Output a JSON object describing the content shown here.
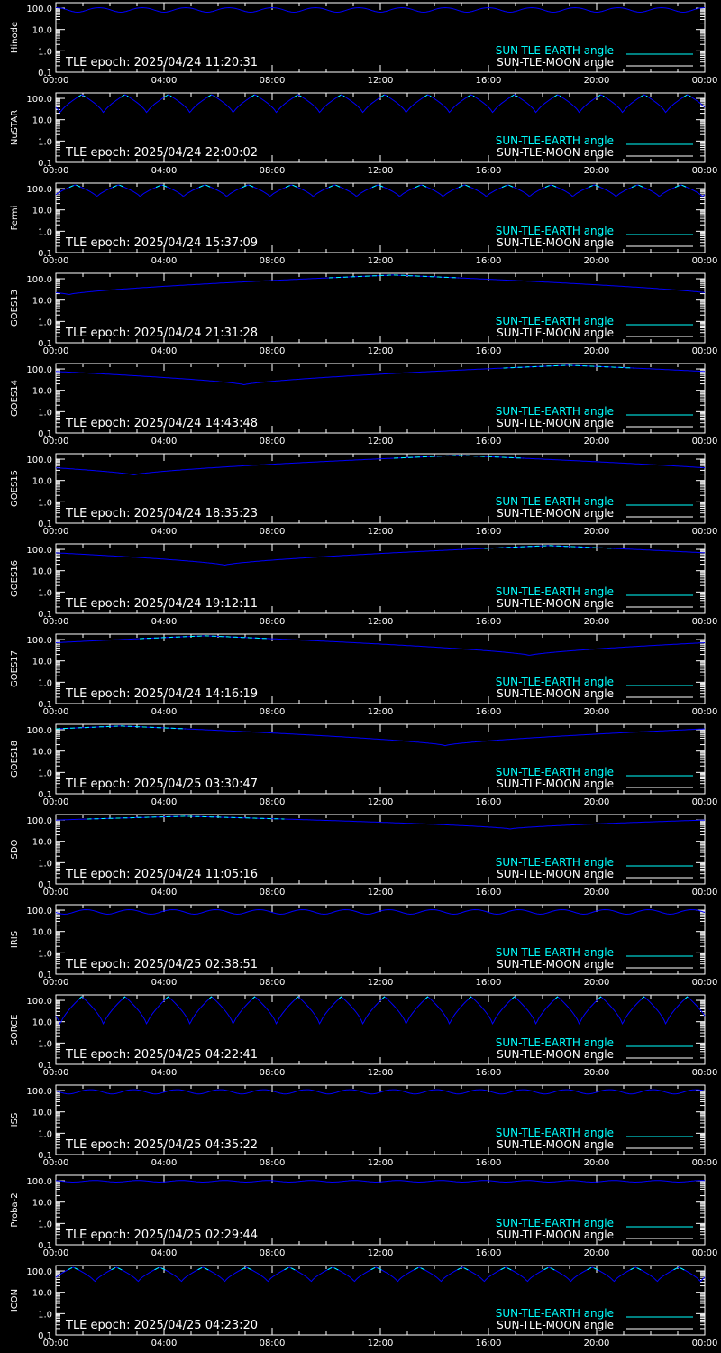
{
  "colors": {
    "background": "#000000",
    "axes": "#ffffff",
    "earth_series": "#00ffff",
    "moon_series": "#0000ff"
  },
  "legend": {
    "earth_label": "SUN-TLE-EARTH angle",
    "moon_label": "SUN-TLE-MOON angle"
  },
  "y_tick_labels": [
    "100.0",
    "10.0",
    "1.0",
    "0.1"
  ],
  "x_tick_labels": [
    "00:00",
    "04:00",
    "08:00",
    "12:00",
    "16:00",
    "20:00",
    "00:00"
  ],
  "chart_data": [
    {
      "type": "line",
      "ylabel": "Hinode",
      "annotation": "TLE epoch: 2025/04/24 11:20:31",
      "x_range_hours": [
        0,
        24
      ],
      "ylim": [
        0.1,
        180
      ],
      "y_scale": "log",
      "legend_position": "bottom-right",
      "series": [
        {
          "values": {
            "mean": 85,
            "amp": 20,
            "cycles": 15,
            "phase": 0,
            "shape": "sine",
            "min": 60
          }
        }
      ]
    },
    {
      "type": "line",
      "ylabel": "NuSTAR",
      "annotation": "TLE epoch: 2025/04/24 22:00:02",
      "x_range_hours": [
        0,
        24
      ],
      "ylim": [
        0.1,
        180
      ],
      "y_scale": "log",
      "legend_position": "bottom-right",
      "series": [
        {
          "values": {
            "cycles": 15,
            "phase": 0.4,
            "shape": "dip",
            "min": 20
          }
        }
      ]
    },
    {
      "type": "line",
      "ylabel": "Fermi",
      "annotation": "TLE epoch: 2025/04/24 15:37:09",
      "x_range_hours": [
        0,
        24
      ],
      "ylim": [
        0.1,
        180
      ],
      "y_scale": "log",
      "legend_position": "bottom-right",
      "series": [
        {
          "values": {
            "cycles": 15,
            "phase": 0.55,
            "shape": "dip",
            "min": 40
          }
        }
      ]
    },
    {
      "type": "line",
      "ylabel": "GOES13",
      "annotation": "TLE epoch: 2025/04/24 21:31:28",
      "x_range_hours": [
        0,
        24
      ],
      "ylim": [
        0.1,
        180
      ],
      "y_scale": "log",
      "legend_position": "bottom-right",
      "series": [
        {
          "values": {
            "cycles": 1,
            "phase": 0.48,
            "shape": "dip",
            "min": 18
          }
        }
      ]
    },
    {
      "type": "line",
      "ylabel": "GOES14",
      "annotation": "TLE epoch: 2025/04/24 14:43:48",
      "x_range_hours": [
        0,
        24
      ],
      "ylim": [
        0.1,
        180
      ],
      "y_scale": "log",
      "legend_position": "bottom-right",
      "series": [
        {
          "values": {
            "cycles": 1,
            "phase": 0.21,
            "shape": "dip",
            "min": 18
          }
        }
      ]
    },
    {
      "type": "line",
      "ylabel": "GOES15",
      "annotation": "TLE epoch: 2025/04/24 18:35:23",
      "x_range_hours": [
        0,
        24
      ],
      "ylim": [
        0.1,
        180
      ],
      "y_scale": "log",
      "legend_position": "bottom-right",
      "series": [
        {
          "values": {
            "cycles": 1,
            "phase": 0.38,
            "shape": "dip",
            "min": 18
          }
        }
      ]
    },
    {
      "type": "line",
      "ylabel": "GOES16",
      "annotation": "TLE epoch: 2025/04/24 19:12:11",
      "x_range_hours": [
        0,
        24
      ],
      "ylim": [
        0.1,
        180
      ],
      "y_scale": "log",
      "legend_position": "bottom-right",
      "series": [
        {
          "values": {
            "cycles": 1,
            "phase": 0.24,
            "shape": "dip",
            "min": 18
          }
        }
      ]
    },
    {
      "type": "line",
      "ylabel": "GOES17",
      "annotation": "TLE epoch: 2025/04/24 14:16:19",
      "x_range_hours": [
        0,
        24
      ],
      "ylim": [
        0.1,
        180
      ],
      "y_scale": "log",
      "legend_position": "bottom-right",
      "series": [
        {
          "values": {
            "cycles": 1,
            "phase": 0.77,
            "shape": "dip",
            "min": 18
          }
        }
      ]
    },
    {
      "type": "line",
      "ylabel": "GOES18",
      "annotation": "TLE epoch: 2025/04/25 03:30:47",
      "x_range_hours": [
        0,
        24
      ],
      "ylim": [
        0.1,
        180
      ],
      "y_scale": "log",
      "legend_position": "bottom-right",
      "series": [
        {
          "values": {
            "cycles": 1,
            "phase": 0.9,
            "shape": "dip",
            "min": 18
          }
        }
      ]
    },
    {
      "type": "line",
      "ylabel": "SDO",
      "annotation": "TLE epoch: 2025/04/24 11:05:16",
      "x_range_hours": [
        0,
        24
      ],
      "ylim": [
        0.1,
        180
      ],
      "y_scale": "log",
      "legend_position": "bottom-right",
      "series": [
        {
          "values": {
            "cycles": 1,
            "phase": 0.8,
            "shape": "dip",
            "min": 38
          }
        }
      ]
    },
    {
      "type": "line",
      "ylabel": "IRIS",
      "annotation": "TLE epoch: 2025/04/25 02:38:51",
      "x_range_hours": [
        0,
        24
      ],
      "ylim": [
        0.1,
        180
      ],
      "y_scale": "log",
      "legend_position": "bottom-right",
      "series": [
        {
          "values": {
            "mean": 85,
            "amp": 20,
            "cycles": 15,
            "phase": 0.3,
            "shape": "sine",
            "min": 60
          }
        }
      ]
    },
    {
      "type": "line",
      "ylabel": "SORCE",
      "annotation": "TLE epoch: 2025/04/25 04:22:41",
      "x_range_hours": [
        0,
        24
      ],
      "ylim": [
        0.1,
        180
      ],
      "y_scale": "log",
      "legend_position": "bottom-right",
      "series": [
        {
          "values": {
            "cycles": 15,
            "phase": 0.4,
            "shape": "dip",
            "min": 7
          }
        }
      ]
    },
    {
      "type": "line",
      "ylabel": "ISS",
      "annotation": "TLE epoch: 2025/04/25 04:35:22",
      "x_range_hours": [
        0,
        24
      ],
      "ylim": [
        0.1,
        180
      ],
      "y_scale": "log",
      "legend_position": "bottom-right",
      "series": [
        {
          "values": {
            "mean": 90,
            "amp": 20,
            "cycles": 15,
            "phase": 0.2,
            "shape": "sine",
            "min": 60
          }
        }
      ]
    },
    {
      "type": "line",
      "ylabel": "Proba-2",
      "annotation": "TLE epoch: 2025/04/25 02:29:44",
      "x_range_hours": [
        0,
        24
      ],
      "ylim": [
        0.1,
        180
      ],
      "y_scale": "log",
      "legend_position": "bottom-right",
      "series": [
        {
          "values": {
            "mean": 95,
            "amp": 8,
            "cycles": 15,
            "phase": 0.1,
            "shape": "sine",
            "min": 80
          }
        }
      ]
    },
    {
      "type": "line",
      "ylabel": "ICON",
      "annotation": "TLE epoch: 2025/04/25 04:23:20",
      "x_range_hours": [
        0,
        24
      ],
      "ylim": [
        0.1,
        180
      ],
      "y_scale": "log",
      "legend_position": "bottom-right",
      "series": [
        {
          "values": {
            "cycles": 15,
            "phase": 0.6,
            "shape": "dip",
            "min": 30
          }
        }
      ]
    }
  ]
}
